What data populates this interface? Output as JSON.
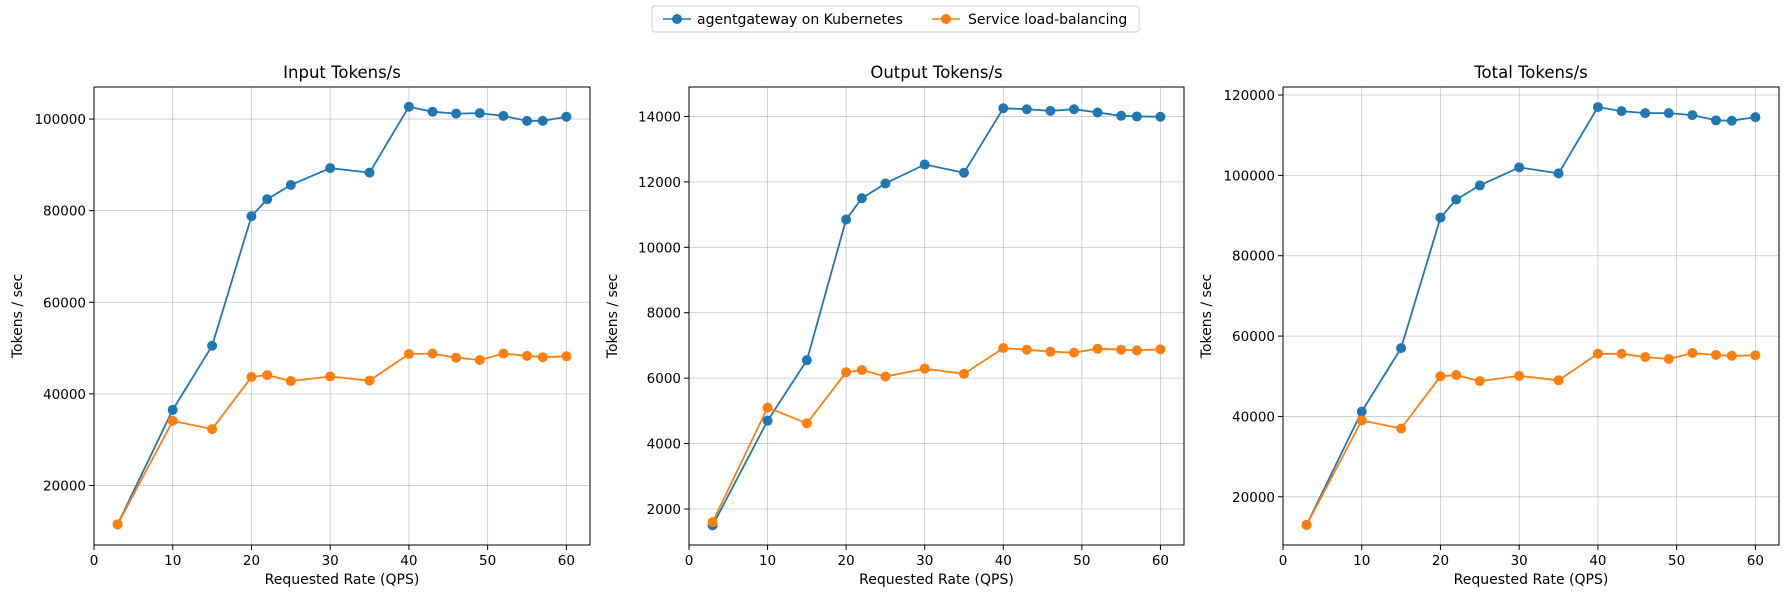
{
  "legend": {
    "placement": "top-center",
    "entries": [
      {
        "label": "agentgateway on Kubernetes",
        "color": "#1f77b4"
      },
      {
        "label": "Service load-balancing",
        "color": "#ff7f0e"
      }
    ]
  },
  "chart_data": [
    {
      "type": "line",
      "title": "Input Tokens/s",
      "xlabel": "Requested Rate (QPS)",
      "ylabel": "Tokens / sec",
      "xlim": [
        0,
        63
      ],
      "ylim": [
        7000,
        107000
      ],
      "xticks": [
        0,
        10,
        20,
        30,
        40,
        50,
        60
      ],
      "yticks": [
        20000,
        40000,
        60000,
        80000,
        100000
      ],
      "grid": true,
      "x": [
        3,
        10,
        15,
        20,
        22,
        25,
        30,
        35,
        40,
        43,
        46,
        49,
        52,
        55,
        57,
        60
      ],
      "series": [
        {
          "name": "agentgateway on Kubernetes",
          "color": "#1f77b4",
          "values": [
            11500,
            36500,
            50500,
            78800,
            82500,
            85600,
            89300,
            88300,
            102700,
            101600,
            101200,
            101300,
            100700,
            99600,
            99600,
            100500
          ]
        },
        {
          "name": "Service load-balancing",
          "color": "#ff7f0e",
          "values": [
            11500,
            34100,
            32300,
            43700,
            44100,
            42800,
            43800,
            42900,
            48700,
            48800,
            47900,
            47400,
            48800,
            48300,
            48000,
            48200
          ]
        }
      ]
    },
    {
      "type": "line",
      "title": "Output Tokens/s",
      "xlabel": "Requested Rate (QPS)",
      "ylabel": "Tokens / sec",
      "xlim": [
        0,
        63
      ],
      "ylim": [
        900,
        14900
      ],
      "xticks": [
        0,
        10,
        20,
        30,
        40,
        50,
        60
      ],
      "yticks": [
        2000,
        4000,
        6000,
        8000,
        10000,
        12000,
        14000
      ],
      "grid": true,
      "x": [
        3,
        10,
        15,
        20,
        22,
        25,
        30,
        35,
        40,
        43,
        46,
        49,
        52,
        55,
        57,
        60
      ],
      "series": [
        {
          "name": "agentgateway on Kubernetes",
          "color": "#1f77b4",
          "values": [
            1500,
            4700,
            6550,
            10850,
            11500,
            11950,
            12530,
            12280,
            14250,
            14220,
            14170,
            14220,
            14120,
            14020,
            14000,
            13990
          ]
        },
        {
          "name": "Service load-balancing",
          "color": "#ff7f0e",
          "values": [
            1600,
            5100,
            4620,
            6180,
            6250,
            6050,
            6290,
            6130,
            6920,
            6870,
            6810,
            6780,
            6900,
            6870,
            6850,
            6880
          ]
        }
      ]
    },
    {
      "type": "line",
      "title": "Total Tokens/s",
      "xlabel": "Requested Rate (QPS)",
      "ylabel": "Tokens / sec",
      "xlim": [
        0,
        63
      ],
      "ylim": [
        8000,
        122000
      ],
      "xticks": [
        0,
        10,
        20,
        30,
        40,
        50,
        60
      ],
      "yticks": [
        20000,
        40000,
        60000,
        80000,
        100000,
        120000
      ],
      "grid": true,
      "x": [
        3,
        10,
        15,
        20,
        22,
        25,
        30,
        35,
        40,
        43,
        46,
        49,
        52,
        55,
        57,
        60
      ],
      "series": [
        {
          "name": "agentgateway on Kubernetes",
          "color": "#1f77b4",
          "values": [
            13000,
            41200,
            57000,
            89500,
            94000,
            97500,
            102000,
            100500,
            117000,
            116000,
            115500,
            115500,
            115000,
            113700,
            113600,
            114500
          ]
        },
        {
          "name": "Service load-balancing",
          "color": "#ff7f0e",
          "values": [
            13000,
            39000,
            37000,
            50000,
            50300,
            48800,
            50100,
            49000,
            55600,
            55600,
            54800,
            54300,
            55800,
            55300,
            55100,
            55200
          ]
        }
      ]
    }
  ]
}
